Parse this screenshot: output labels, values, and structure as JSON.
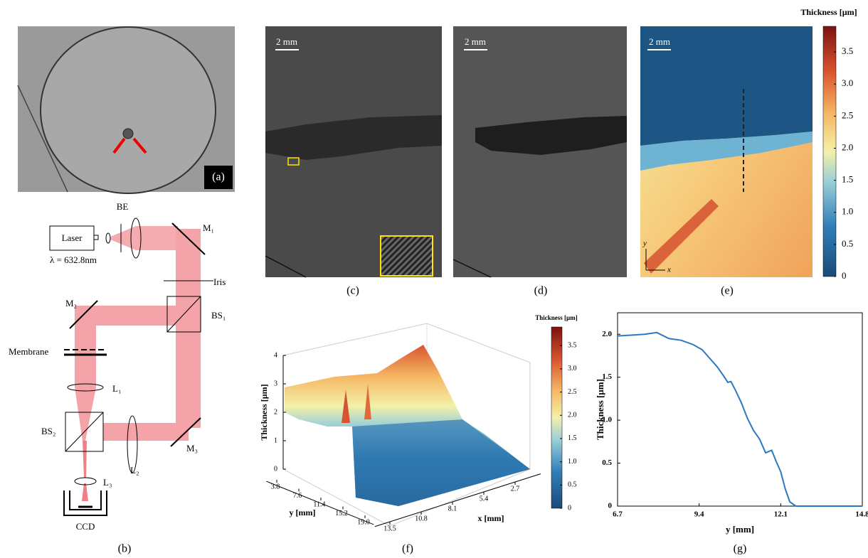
{
  "captions": {
    "a": "(a)",
    "b": "(b)",
    "c": "(c)",
    "d": "(d)",
    "e": "(e)",
    "f": "(f)",
    "g": "(g)"
  },
  "diagram": {
    "laser": "Laser",
    "wavelength": "λ = 632.8nm",
    "be": "BE",
    "m1": "M₁",
    "iris": "Iris",
    "bs1": "BS₁",
    "m2": "M₂",
    "membrane": "Membrane",
    "l1": "L₁",
    "bs2": "BS₂",
    "l2": "L₂",
    "m3": "M₃",
    "l3": "L₃",
    "ccd": "CCD"
  },
  "scale_bars": {
    "c": "2 mm",
    "d": "2 mm",
    "e": "2 mm"
  },
  "image_e": {
    "y_arrow": "y",
    "x_arrow": "x"
  },
  "colorbar_e": {
    "title": "Thickness [µm]",
    "lim": [
      0,
      3.9
    ],
    "ticks": [
      0,
      0.5,
      {
        "value": 1,
        "label": "1.0"
      },
      1.5,
      {
        "value": 2,
        "label": "2.0"
      },
      2.5,
      {
        "value": 3,
        "label": "3.0"
      },
      3.5
    ]
  },
  "surface_f": {
    "z_label": "Thickness [µm]",
    "zlim": [
      0,
      4
    ],
    "zticks": [
      0,
      1,
      2,
      3,
      4
    ],
    "y_label": "y [mm]",
    "ylim": [
      2.0,
      20.5
    ],
    "yticks": [
      3.8,
      7.6,
      11.4,
      15.2,
      {
        "value": 19,
        "label": "19.0"
      }
    ],
    "x_label": "x [mm]",
    "xlim": [
      14.8,
      0.5
    ],
    "xticks": [
      13.5,
      10.8,
      8.1,
      5.4,
      2.7
    ]
  },
  "colorbar_f": {
    "title": "Thickness [µm]",
    "lim": [
      0,
      3.9
    ],
    "ticks": [
      0,
      0.5,
      {
        "value": 1,
        "label": "1.0"
      },
      1.5,
      {
        "value": 2,
        "label": "2.0"
      },
      2.5,
      {
        "value": 3,
        "label": "3.0"
      },
      3.5
    ]
  },
  "chart_data": {
    "type": "line",
    "x_label": "y [mm]",
    "y_label": "Thickness [µm]",
    "x": [
      6.7,
      7.2,
      7.6,
      8.0,
      8.4,
      8.8,
      9.2,
      9.5,
      9.8,
      10.0,
      10.2,
      10.35,
      10.45,
      10.6,
      10.8,
      11.0,
      11.2,
      11.4,
      11.6,
      11.8,
      11.95,
      12.1,
      12.25,
      12.4,
      12.6,
      13.0,
      14.8
    ],
    "series": [
      {
        "name": "Thickness",
        "color": "#2a78c2",
        "values": [
          1.98,
          1.99,
          2.0,
          2.02,
          1.95,
          1.93,
          1.88,
          1.82,
          1.7,
          1.62,
          1.52,
          1.44,
          1.45,
          1.35,
          1.2,
          1.02,
          0.88,
          0.78,
          0.62,
          0.65,
          0.52,
          0.4,
          0.2,
          0.05,
          0.0,
          0.0,
          0.0
        ]
      }
    ],
    "xlim": [
      6.7,
      14.8
    ],
    "xticks": [
      6.7,
      9.4,
      12.1,
      14.8
    ],
    "ylim": [
      0,
      2.25
    ],
    "yticks": [
      0,
      0.5,
      {
        "value": 1,
        "label": "1.0"
      },
      1.5,
      {
        "value": 2,
        "label": "2.0"
      }
    ]
  }
}
